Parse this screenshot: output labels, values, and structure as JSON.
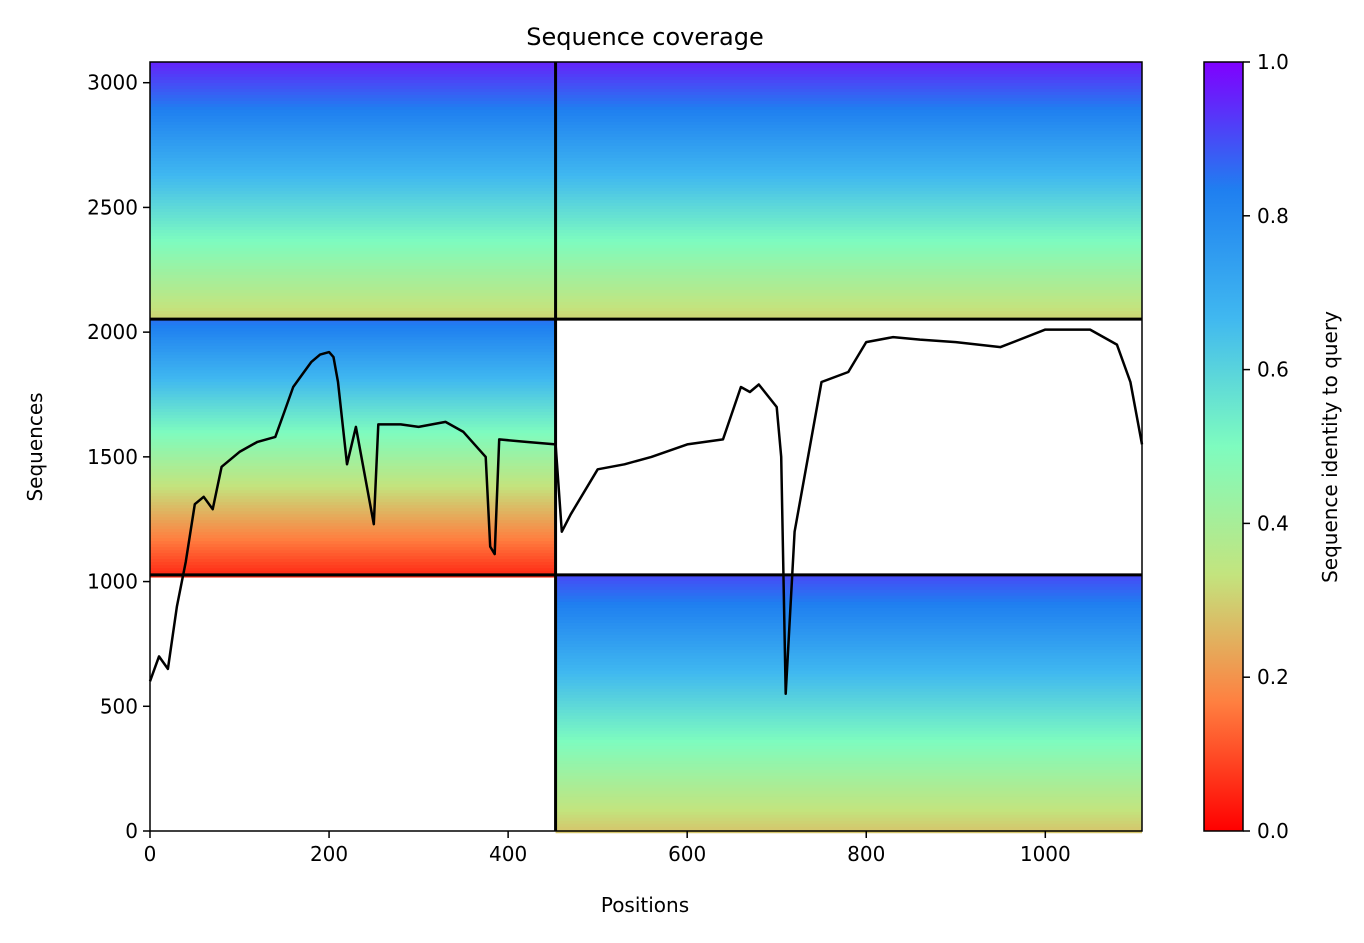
{
  "chart_data": {
    "type": "heatmap",
    "title": "Sequence coverage",
    "xlabel": "Positions",
    "ylabel": "Sequences",
    "xlim": [
      0,
      1108
    ],
    "ylim": [
      0,
      3083
    ],
    "xticks": [
      0,
      200,
      400,
      600,
      800,
      1000
    ],
    "yticks": [
      0,
      500,
      1000,
      1500,
      2000,
      2500,
      3000
    ],
    "colorbar": {
      "label": "Sequence identity to query",
      "range": [
        0,
        1
      ],
      "ticks": [
        "0.0",
        "0.2",
        "0.4",
        "0.6",
        "0.8",
        "1.0"
      ],
      "colormap": "rainbow_r",
      "stops": [
        "#ff0000",
        "#ff7f40",
        "#c3e47e",
        "#7efcbf",
        "#40b8f0",
        "#1f7ff0",
        "#8000ff"
      ]
    },
    "block_boundaries": {
      "positions": [
        453
      ],
      "sequences": [
        1027,
        2052
      ]
    },
    "blocks": [
      {
        "positions": [
          0,
          453
        ],
        "sequences": [
          2052,
          3083
        ],
        "identity_top": 0.95,
        "identity_bottom": 0.3
      },
      {
        "positions": [
          453,
          1108
        ],
        "sequences": [
          2052,
          3083
        ],
        "identity_top": 0.95,
        "identity_bottom": 0.3
      },
      {
        "positions": [
          0,
          453
        ],
        "sequences": [
          1027,
          2052
        ],
        "identity_top": 0.85,
        "identity_bottom": 0.05
      },
      {
        "positions": [
          453,
          1108
        ],
        "sequences": [
          0,
          1027
        ],
        "identity_top": 0.9,
        "identity_bottom": 0.28
      }
    ],
    "coverage_line": {
      "color": "#000000",
      "x": [
        0,
        10,
        20,
        30,
        40,
        50,
        60,
        70,
        80,
        100,
        120,
        140,
        150,
        160,
        170,
        180,
        190,
        200,
        205,
        210,
        220,
        230,
        250,
        255,
        260,
        280,
        300,
        330,
        350,
        375,
        380,
        385,
        390,
        420,
        453,
        460,
        470,
        500,
        530,
        560,
        600,
        640,
        660,
        670,
        680,
        700,
        705,
        710,
        720,
        750,
        780,
        800,
        830,
        860,
        900,
        950,
        1000,
        1050,
        1080,
        1095,
        1108
      ],
      "y": [
        600,
        700,
        650,
        900,
        1080,
        1310,
        1340,
        1290,
        1460,
        1520,
        1560,
        1580,
        1680,
        1780,
        1830,
        1880,
        1910,
        1920,
        1900,
        1800,
        1470,
        1620,
        1230,
        1630,
        1630,
        1630,
        1620,
        1640,
        1600,
        1500,
        1140,
        1110,
        1570,
        1560,
        1550,
        1200,
        1270,
        1450,
        1470,
        1500,
        1550,
        1570,
        1780,
        1760,
        1790,
        1700,
        1500,
        550,
        1200,
        1800,
        1840,
        1960,
        1980,
        1970,
        1960,
        1940,
        2010,
        2010,
        1950,
        1800,
        1550
      ]
    }
  }
}
